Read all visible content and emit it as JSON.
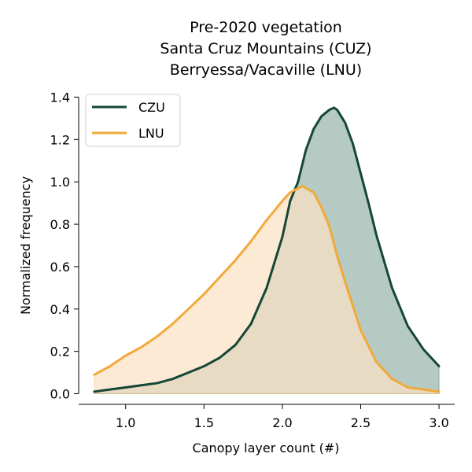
{
  "chart_data": {
    "type": "area",
    "title_lines": [
      "Pre-2020 vegetation",
      "Santa Cruz Mountains (CUZ)",
      "Berryessa/Vacaville (LNU)"
    ],
    "xlabel": "Canopy layer count (#)",
    "ylabel": "Normalized frequency",
    "xlim": [
      0.7,
      3.1
    ],
    "ylim": [
      -0.05,
      1.45
    ],
    "xticks": [
      1.0,
      1.5,
      2.0,
      2.5,
      3.0
    ],
    "xtick_labels": [
      "1.0",
      "1.5",
      "2.0",
      "2.5",
      "3.0"
    ],
    "yticks": [
      0.0,
      0.2,
      0.4,
      0.6,
      0.8,
      1.0,
      1.2,
      1.4
    ],
    "ytick_labels": [
      "0.0",
      "0.2",
      "0.4",
      "0.6",
      "0.8",
      "1.0",
      "1.2",
      "1.4"
    ],
    "grid": false,
    "legend_position": "top-left",
    "series": [
      {
        "name": "CZU",
        "color": "#154734",
        "fill_color": "#b4cac3",
        "x": [
          0.8,
          0.9,
          1.0,
          1.1,
          1.2,
          1.3,
          1.4,
          1.5,
          1.6,
          1.7,
          1.8,
          1.9,
          2.0,
          2.05,
          2.1,
          2.15,
          2.2,
          2.25,
          2.3,
          2.33,
          2.35,
          2.4,
          2.45,
          2.5,
          2.55,
          2.6,
          2.7,
          2.8,
          2.9,
          3.0
        ],
        "y": [
          0.01,
          0.02,
          0.03,
          0.04,
          0.05,
          0.07,
          0.1,
          0.13,
          0.17,
          0.23,
          0.33,
          0.5,
          0.74,
          0.91,
          1.0,
          1.15,
          1.25,
          1.31,
          1.34,
          1.35,
          1.34,
          1.28,
          1.18,
          1.04,
          0.9,
          0.75,
          0.5,
          0.32,
          0.21,
          0.13
        ]
      },
      {
        "name": "LNU",
        "color": "#f2a93b",
        "fill_color": "#fbe2c3",
        "x": [
          0.8,
          0.9,
          1.0,
          1.1,
          1.2,
          1.3,
          1.4,
          1.5,
          1.6,
          1.7,
          1.8,
          1.9,
          2.0,
          2.05,
          2.1,
          2.13,
          2.15,
          2.2,
          2.25,
          2.3,
          2.35,
          2.4,
          2.5,
          2.6,
          2.7,
          2.8,
          2.9,
          3.0
        ],
        "y": [
          0.09,
          0.13,
          0.18,
          0.22,
          0.27,
          0.33,
          0.4,
          0.47,
          0.55,
          0.63,
          0.72,
          0.82,
          0.91,
          0.95,
          0.97,
          0.98,
          0.97,
          0.95,
          0.88,
          0.79,
          0.65,
          0.53,
          0.3,
          0.15,
          0.07,
          0.03,
          0.02,
          0.01
        ]
      }
    ]
  }
}
